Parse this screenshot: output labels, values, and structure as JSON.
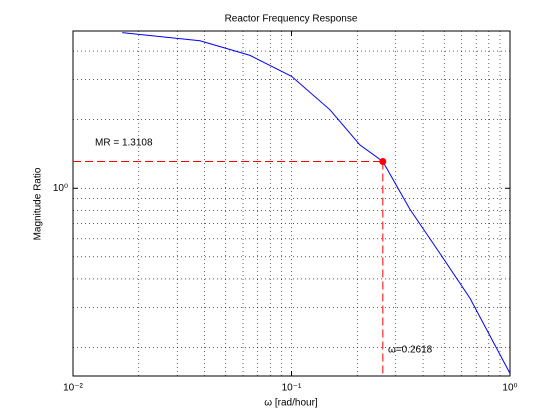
{
  "chart_data": {
    "type": "line",
    "title": "Reactor Frequency Response",
    "x_label": "ω [rad/hour]",
    "y_label": "Magnitude Ratio",
    "x_scale": "log",
    "y_scale": "log",
    "grid": true,
    "xlim": [
      0.01,
      1
    ],
    "xticks": [
      {
        "value": 0.01,
        "label": "10⁻²"
      },
      {
        "value": 0.1,
        "label": "10⁻¹"
      },
      {
        "value": 1,
        "label": "10⁰"
      }
    ],
    "ylim": [
      0.15,
      4.9
    ],
    "yticks": [
      {
        "value": 1,
        "label": "10⁰"
      }
    ],
    "series": [
      {
        "name": "Magnitude Ratio",
        "color": "#0000ff",
        "x": [
          0.0168,
          0.0381,
          0.0646,
          0.1,
          0.15,
          0.2056,
          0.2618,
          0.348,
          0.479,
          0.656,
          1.0
        ],
        "values": [
          4.82,
          4.44,
          3.83,
          3.1,
          2.21,
          1.55,
          1.3108,
          0.81,
          0.516,
          0.329,
          0.154
        ]
      }
    ],
    "highlight": {
      "x": 0.2618,
      "y": 1.3108,
      "color": "#ff0000"
    },
    "annotations": [
      "MR = 1.3108",
      "ω=0.2618"
    ]
  }
}
